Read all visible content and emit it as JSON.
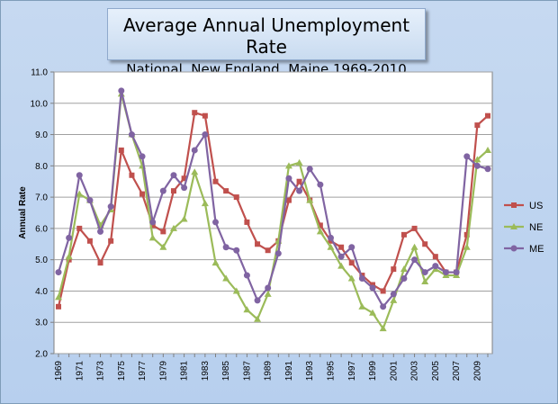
{
  "chart_data": {
    "type": "line",
    "title": "Average Annual Unemployment Rate",
    "subtitle": "National, New England, Maine 1969-2010",
    "xlabel": "",
    "ylabel": "Annual Rate",
    "ylim": [
      2.0,
      11.0
    ],
    "yticks": [
      "2.0",
      "3.0",
      "4.0",
      "5.0",
      "6.0",
      "7.0",
      "8.0",
      "9.0",
      "10.0",
      "11.0"
    ],
    "x": [
      1969,
      1970,
      1971,
      1972,
      1973,
      1974,
      1975,
      1976,
      1977,
      1978,
      1979,
      1980,
      1981,
      1982,
      1983,
      1984,
      1985,
      1986,
      1987,
      1988,
      1989,
      1990,
      1991,
      1992,
      1993,
      1994,
      1995,
      1996,
      1997,
      1998,
      1999,
      2000,
      2001,
      2002,
      2003,
      2004,
      2005,
      2006,
      2007,
      2008,
      2009,
      2010
    ],
    "xticks": [
      "1969",
      "1971",
      "1973",
      "1975",
      "1977",
      "1979",
      "1981",
      "1983",
      "1985",
      "1987",
      "1989",
      "1991",
      "1993",
      "1995",
      "1997",
      "1999",
      "2001",
      "2003",
      "2005",
      "2007",
      "2009"
    ],
    "grid": true,
    "legend_position": "right",
    "series": [
      {
        "name": "US",
        "color": "#c0504d",
        "marker": "square",
        "values": [
          3.5,
          5.0,
          6.0,
          5.6,
          4.9,
          5.6,
          8.5,
          7.7,
          7.1,
          6.1,
          5.9,
          7.2,
          7.6,
          9.7,
          9.6,
          7.5,
          7.2,
          7.0,
          6.2,
          5.5,
          5.3,
          5.6,
          6.9,
          7.5,
          6.9,
          6.1,
          5.6,
          5.4,
          4.9,
          4.5,
          4.2,
          4.0,
          4.7,
          5.8,
          6.0,
          5.5,
          5.1,
          4.6,
          4.6,
          5.8,
          9.3,
          9.6
        ]
      },
      {
        "name": "NE",
        "color": "#9bbb59",
        "marker": "triangle",
        "values": [
          3.8,
          5.1,
          7.1,
          6.9,
          6.1,
          6.6,
          10.3,
          9.0,
          8.0,
          5.7,
          5.4,
          6.0,
          6.3,
          7.8,
          6.8,
          4.9,
          4.4,
          4.0,
          3.4,
          3.1,
          3.9,
          5.6,
          8.0,
          8.1,
          6.9,
          5.9,
          5.4,
          4.8,
          4.4,
          3.5,
          3.3,
          2.8,
          3.7,
          4.7,
          5.4,
          4.3,
          4.7,
          4.5,
          4.5,
          5.4,
          8.2,
          8.5
        ]
      },
      {
        "name": "ME",
        "color": "#8064a2",
        "marker": "circle",
        "values": [
          4.6,
          5.7,
          7.7,
          6.9,
          5.9,
          6.7,
          10.4,
          9.0,
          8.3,
          6.2,
          7.2,
          7.7,
          7.3,
          8.5,
          9.0,
          6.2,
          5.4,
          5.3,
          4.5,
          3.7,
          4.1,
          5.2,
          7.6,
          7.2,
          7.9,
          7.4,
          5.7,
          5.1,
          5.4,
          4.4,
          4.1,
          3.5,
          3.9,
          4.4,
          5.0,
          4.6,
          4.8,
          4.6,
          4.6,
          8.3,
          8.0,
          7.9
        ]
      }
    ]
  },
  "colors": {
    "frame_bg": "#c6d9f1",
    "plot_bg": "#ffffff",
    "grid": "#a0a0a0"
  }
}
